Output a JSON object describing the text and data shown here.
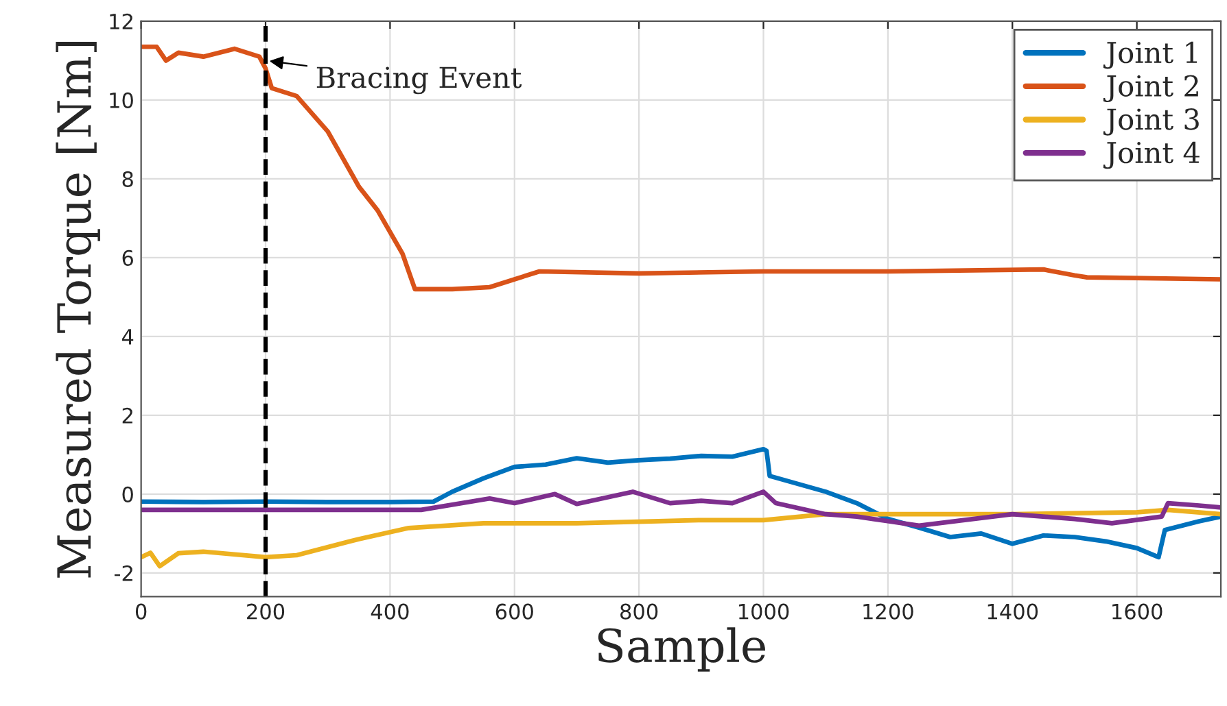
{
  "chart_data": {
    "type": "line",
    "xlabel": "Sample",
    "ylabel": "Measured Torque [Nm]",
    "xlim": [
      0,
      1735
    ],
    "ylim": [
      -2.6,
      12
    ],
    "xticks": [
      0,
      200,
      400,
      600,
      800,
      1000,
      1200,
      1400,
      1600
    ],
    "yticks": [
      -2,
      0,
      2,
      4,
      6,
      8,
      10,
      12
    ],
    "grid": true,
    "legend": "top right",
    "marker": "none",
    "line_style": "solid",
    "ref_lines": [
      {
        "axis": "x",
        "value": 200,
        "color": "#000000",
        "line_style": "dashed"
      }
    ],
    "annotations": [
      {
        "text": "Bracing Event",
        "x": 200,
        "y": 11.0
      }
    ],
    "series": [
      {
        "name": "Joint 1",
        "color": "#0072bd",
        "x": [
          0,
          100,
          200,
          300,
          400,
          470,
          500,
          550,
          600,
          650,
          700,
          750,
          800,
          850,
          900,
          950,
          1000,
          1005,
          1010,
          1100,
          1150,
          1200,
          1250,
          1300,
          1350,
          1400,
          1450,
          1500,
          1550,
          1600,
          1635,
          1645,
          1700,
          1735
        ],
        "values": [
          -0.19,
          -0.2,
          -0.19,
          -0.2,
          -0.2,
          -0.19,
          0.06,
          0.4,
          0.69,
          0.75,
          0.91,
          0.8,
          0.86,
          0.9,
          0.97,
          0.95,
          1.14,
          1.1,
          0.46,
          0.06,
          -0.23,
          -0.63,
          -0.85,
          -1.09,
          -1.0,
          -1.26,
          -1.05,
          -1.09,
          -1.2,
          -1.37,
          -1.6,
          -0.91,
          -0.69,
          -0.57
        ]
      },
      {
        "name": "Joint 2",
        "color": "#d95319",
        "x": [
          0,
          25,
          40,
          60,
          100,
          150,
          190,
          200,
          210,
          250,
          300,
          350,
          380,
          420,
          440,
          500,
          560,
          640,
          800,
          1000,
          1200,
          1450,
          1500,
          1520,
          1735
        ],
        "values": [
          11.35,
          11.35,
          11.0,
          11.2,
          11.1,
          11.3,
          11.1,
          10.8,
          10.3,
          10.1,
          9.2,
          7.8,
          7.2,
          6.1,
          5.2,
          5.2,
          5.25,
          5.65,
          5.6,
          5.65,
          5.65,
          5.7,
          5.55,
          5.5,
          5.45
        ]
      },
      {
        "name": "Joint 3",
        "color": "#edb120",
        "x": [
          0,
          15,
          30,
          60,
          100,
          200,
          250,
          350,
          430,
          550,
          700,
          900,
          1000,
          1100,
          1400,
          1600,
          1650,
          1735
        ],
        "values": [
          -1.6,
          -1.49,
          -1.83,
          -1.5,
          -1.46,
          -1.6,
          -1.55,
          -1.14,
          -0.86,
          -0.74,
          -0.74,
          -0.66,
          -0.66,
          -0.51,
          -0.51,
          -0.46,
          -0.4,
          -0.51
        ]
      },
      {
        "name": "Joint 4",
        "color": "#7e2f8e",
        "x": [
          0,
          200,
          450,
          560,
          600,
          665,
          700,
          790,
          850,
          900,
          950,
          1000,
          1020,
          1100,
          1150,
          1250,
          1400,
          1500,
          1560,
          1640,
          1650,
          1700,
          1735
        ],
        "values": [
          -0.4,
          -0.4,
          -0.4,
          -0.11,
          -0.23,
          0.0,
          -0.25,
          0.06,
          -0.23,
          -0.17,
          -0.23,
          0.06,
          -0.23,
          -0.51,
          -0.57,
          -0.8,
          -0.51,
          -0.63,
          -0.74,
          -0.57,
          -0.23,
          -0.29,
          -0.34
        ]
      }
    ]
  }
}
